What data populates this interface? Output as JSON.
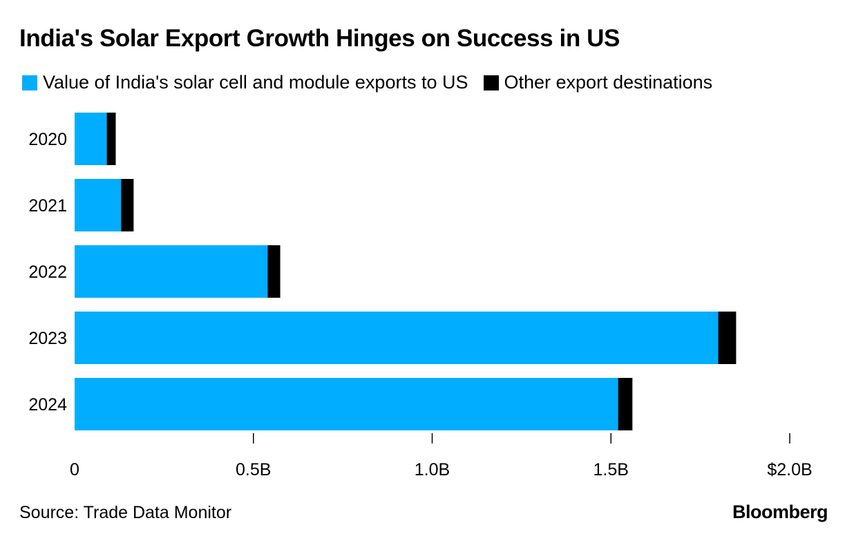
{
  "chart_data": {
    "type": "bar",
    "orientation": "horizontal",
    "stacked": true,
    "title": "India's Solar Export Growth Hinges on Success in US",
    "categories": [
      "2020",
      "2021",
      "2022",
      "2023",
      "2024"
    ],
    "series": [
      {
        "name": "Value of India's solar cell and module exports to US",
        "color": "#00ADFF",
        "values": [
          0.09,
          0.13,
          0.54,
          1.8,
          1.52
        ]
      },
      {
        "name": "Other export destinations",
        "color": "#000000",
        "values": [
          0.025,
          0.035,
          0.035,
          0.05,
          0.04
        ]
      }
    ],
    "x_ticks": [
      {
        "value": 0,
        "label": "0"
      },
      {
        "value": 0.5,
        "label": "0.5B"
      },
      {
        "value": 1.0,
        "label": "1.0B"
      },
      {
        "value": 1.5,
        "label": "1.5B"
      },
      {
        "value": 2.0,
        "label": "$2.0B"
      }
    ],
    "xlim": [
      0,
      2.0
    ],
    "xlabel": "",
    "ylabel": "",
    "grid": false,
    "legend_position": "top-left"
  },
  "footer": {
    "source": "Source: Trade Data Monitor",
    "brand": "Bloomberg"
  }
}
